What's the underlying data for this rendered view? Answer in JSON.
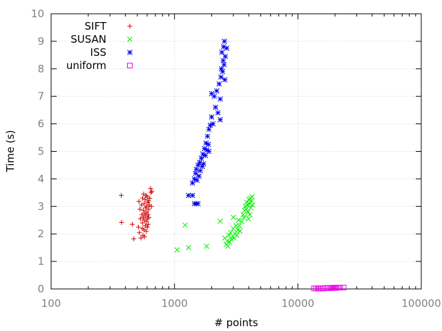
{
  "chart_data": {
    "type": "scatter",
    "title": "",
    "xlabel": "# points",
    "ylabel": "Time (s)",
    "xscale": "log",
    "xlim": [
      100,
      100000
    ],
    "ylim": [
      0,
      10
    ],
    "xticks": [
      100,
      1000,
      10000,
      100000
    ],
    "xtick_labels": [
      "100",
      "1000",
      "10000",
      "100000"
    ],
    "yticks": [
      0,
      1,
      2,
      3,
      4,
      5,
      6,
      7,
      8,
      9,
      10
    ],
    "ytick_labels": [
      "0",
      "1",
      "2",
      "3",
      "4",
      "5",
      "6",
      "7",
      "8",
      "9",
      "10"
    ],
    "grid": true,
    "legend": "top-left",
    "series": [
      {
        "name": "SIFT",
        "marker": "plus",
        "color": "#cc0000",
        "points": [
          [
            370,
            3.4
          ],
          [
            372,
            2.42
          ],
          [
            455,
            2.35
          ],
          [
            468,
            1.82
          ],
          [
            510,
            2.25
          ],
          [
            515,
            3.18
          ],
          [
            520,
            2.05
          ],
          [
            525,
            2.9
          ],
          [
            530,
            2.55
          ],
          [
            535,
            1.85
          ],
          [
            540,
            3.05
          ],
          [
            545,
            2.7
          ],
          [
            548,
            2.2
          ],
          [
            550,
            2.4
          ],
          [
            552,
            3.3
          ],
          [
            555,
            1.95
          ],
          [
            558,
            2.6
          ],
          [
            560,
            2.85
          ],
          [
            562,
            3.45
          ],
          [
            565,
            2.15
          ],
          [
            568,
            3.1
          ],
          [
            570,
            2.5
          ],
          [
            572,
            1.9
          ],
          [
            575,
            2.75
          ],
          [
            578,
            3.25
          ],
          [
            580,
            2.3
          ],
          [
            582,
            2.95
          ],
          [
            585,
            2.65
          ],
          [
            588,
            3.4
          ],
          [
            590,
            2.1
          ],
          [
            592,
            2.45
          ],
          [
            595,
            3.0
          ],
          [
            598,
            2.8
          ],
          [
            600,
            3.35
          ],
          [
            602,
            2.25
          ],
          [
            605,
            2.55
          ],
          [
            608,
            3.15
          ],
          [
            610,
            2.7
          ],
          [
            612,
            2.35
          ],
          [
            615,
            3.2
          ],
          [
            618,
            2.9
          ],
          [
            620,
            2.6
          ],
          [
            625,
            3.05
          ],
          [
            630,
            3.3
          ],
          [
            640,
            3.65
          ],
          [
            645,
            3.5
          ],
          [
            650,
            3.0
          ],
          [
            655,
            3.55
          ]
        ]
      },
      {
        "name": "SUSAN",
        "marker": "cross",
        "color": "#00ee00",
        "points": [
          [
            1050,
            1.42
          ],
          [
            1220,
            2.32
          ],
          [
            1300,
            1.5
          ],
          [
            1820,
            1.55
          ],
          [
            2350,
            2.46
          ],
          [
            2550,
            1.85
          ],
          [
            2620,
            1.62
          ],
          [
            2680,
            1.75
          ],
          [
            2750,
            1.95
          ],
          [
            2800,
            1.7
          ],
          [
            2850,
            2.05
          ],
          [
            2900,
            1.8
          ],
          [
            2950,
            1.9
          ],
          [
            3000,
            2.2
          ],
          [
            3050,
            1.85
          ],
          [
            3100,
            2.0
          ],
          [
            3150,
            2.3
          ],
          [
            3200,
            1.95
          ],
          [
            3250,
            2.15
          ],
          [
            3300,
            2.5
          ],
          [
            3400,
            2.1
          ],
          [
            3500,
            2.45
          ],
          [
            3600,
            2.7
          ],
          [
            3650,
            2.6
          ],
          [
            3700,
            2.85
          ],
          [
            3750,
            3.0
          ],
          [
            3800,
            2.9
          ],
          [
            3850,
            3.15
          ],
          [
            3900,
            3.05
          ],
          [
            3950,
            2.8
          ],
          [
            4000,
            3.25
          ],
          [
            4050,
            3.1
          ],
          [
            4100,
            3.3
          ],
          [
            4150,
            2.95
          ],
          [
            4200,
            3.2
          ],
          [
            4250,
            3.35
          ],
          [
            4300,
            3.05
          ],
          [
            3980,
            2.55
          ],
          [
            4080,
            2.7
          ],
          [
            3000,
            2.6
          ],
          [
            2700,
            1.55
          ],
          [
            3350,
            2.3
          ]
        ]
      },
      {
        "name": "ISS",
        "marker": "star",
        "color": "#0000ee",
        "points": [
          [
            1300,
            3.4
          ],
          [
            1400,
            3.4
          ],
          [
            1450,
            3.1
          ],
          [
            1500,
            3.1
          ],
          [
            1550,
            3.1
          ],
          [
            1400,
            3.85
          ],
          [
            1450,
            4.0
          ],
          [
            1480,
            4.2
          ],
          [
            1500,
            4.35
          ],
          [
            1520,
            3.95
          ],
          [
            1550,
            4.5
          ],
          [
            1580,
            4.1
          ],
          [
            1600,
            4.6
          ],
          [
            1620,
            4.3
          ],
          [
            1650,
            4.75
          ],
          [
            1680,
            4.45
          ],
          [
            1700,
            4.9
          ],
          [
            1720,
            4.55
          ],
          [
            1750,
            5.1
          ],
          [
            1780,
            4.85
          ],
          [
            1800,
            5.3
          ],
          [
            1830,
            5.05
          ],
          [
            1850,
            5.55
          ],
          [
            1880,
            5.25
          ],
          [
            1900,
            5.8
          ],
          [
            1950,
            5.95
          ],
          [
            2000,
            6.25
          ],
          [
            2050,
            6.0
          ],
          [
            2100,
            7.0
          ],
          [
            2150,
            6.6
          ],
          [
            2200,
            7.2
          ],
          [
            2250,
            6.4
          ],
          [
            2300,
            7.45
          ],
          [
            2350,
            6.9
          ],
          [
            2380,
            7.7
          ],
          [
            2400,
            8.0
          ],
          [
            2420,
            8.6
          ],
          [
            2450,
            7.9
          ],
          [
            2480,
            8.3
          ],
          [
            2500,
            8.8
          ],
          [
            2520,
            8.15
          ],
          [
            2540,
            9.0
          ],
          [
            2560,
            7.6
          ],
          [
            2580,
            8.45
          ],
          [
            2650,
            8.75
          ],
          [
            2000,
            7.1
          ],
          [
            2350,
            6.15
          ],
          [
            1900,
            5.0
          ]
        ]
      },
      {
        "name": "uniform",
        "marker": "square",
        "color": "#ee00ee",
        "points": [
          [
            13500,
            0.02
          ],
          [
            14000,
            0.02
          ],
          [
            14500,
            0.02
          ],
          [
            15000,
            0.02
          ],
          [
            15500,
            0.02
          ],
          [
            16000,
            0.02
          ],
          [
            16500,
            0.03
          ],
          [
            17000,
            0.03
          ],
          [
            17500,
            0.03
          ],
          [
            18000,
            0.03
          ],
          [
            18500,
            0.03
          ],
          [
            19000,
            0.04
          ],
          [
            19500,
            0.04
          ],
          [
            20000,
            0.04
          ],
          [
            20500,
            0.04
          ],
          [
            21000,
            0.05
          ],
          [
            21500,
            0.05
          ],
          [
            22000,
            0.05
          ],
          [
            23500,
            0.05
          ]
        ]
      }
    ]
  }
}
